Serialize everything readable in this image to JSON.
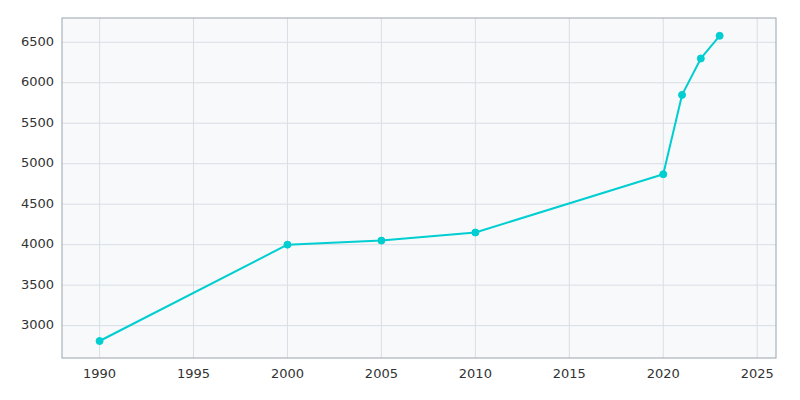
{
  "chart_data": {
    "type": "line",
    "x": [
      1990,
      2000,
      2005,
      2010,
      2020,
      2021,
      2022,
      2023
    ],
    "values": [
      2810,
      4000,
      4050,
      4150,
      4870,
      5850,
      6300,
      6580
    ],
    "color": "#00CED1",
    "marker": "circle",
    "xlim": [
      1988,
      2026
    ],
    "ylim": [
      2600,
      6800
    ],
    "xticks": [
      1990,
      1995,
      2000,
      2005,
      2010,
      2015,
      2020,
      2025
    ],
    "yticks": [
      3000,
      3500,
      4000,
      4500,
      5000,
      5500,
      6000,
      6500
    ],
    "grid": true
  }
}
